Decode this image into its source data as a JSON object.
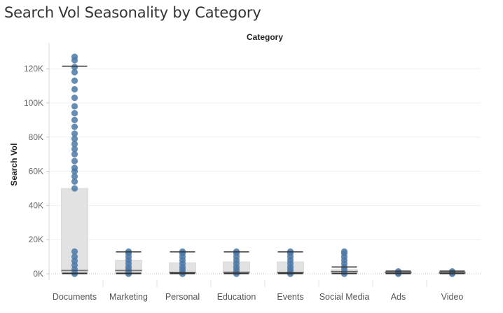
{
  "title": "Search Vol Seasonality by Category",
  "chart_data": {
    "type": "box",
    "column_header": "Category",
    "ylabel": "Search Vol",
    "ylim": [
      0,
      130000
    ],
    "yticks": [
      0,
      20000,
      40000,
      60000,
      80000,
      100000,
      120000
    ],
    "ytick_labels": [
      "0K",
      "20K",
      "40K",
      "60K",
      "80K",
      "100K",
      "120K"
    ],
    "grid": true,
    "point_color": "#4e79a7",
    "box_color": "#e0e0e0",
    "categories": [
      {
        "name": "Documents",
        "min": 0,
        "q1": 800,
        "median": 2000,
        "q3": 50000,
        "whisker_high": 121500,
        "points": [
          0,
          800,
          2500,
          5000,
          7500,
          10000,
          13000,
          50000,
          54000,
          57000,
          60000,
          62000,
          66000,
          70000,
          73000,
          76000,
          79000,
          82000,
          86000,
          90000,
          94000,
          98000,
          103000,
          108000,
          113000,
          118000,
          121000,
          125000,
          127000
        ]
      },
      {
        "name": "Marketing",
        "min": 0,
        "q1": 800,
        "median": 2000,
        "q3": 8000,
        "whisker_high": 12800,
        "points": [
          0,
          1000,
          2500,
          4000,
          6000,
          8000,
          10000,
          12000,
          13000
        ]
      },
      {
        "name": "Personal",
        "min": 0,
        "q1": 600,
        "median": 800,
        "q3": 6500,
        "whisker_high": 12800,
        "points": [
          0,
          1000,
          2500,
          4000,
          6000,
          8000,
          10000,
          12000,
          13000
        ]
      },
      {
        "name": "Education",
        "min": 0,
        "q1": 600,
        "median": 1000,
        "q3": 7000,
        "whisker_high": 12800,
        "points": [
          0,
          1000,
          2500,
          4000,
          6000,
          8000,
          10000,
          12000,
          13000
        ]
      },
      {
        "name": "Events",
        "min": 0,
        "q1": 600,
        "median": 800,
        "q3": 7000,
        "whisker_high": 12800,
        "points": [
          0,
          1000,
          2500,
          4000,
          6000,
          8000,
          10000,
          12000,
          13000
        ]
      },
      {
        "name": "Social Media",
        "min": 0,
        "q1": 500,
        "median": 1500,
        "q3": 2500,
        "whisker_high": 4000,
        "points": [
          0,
          1000,
          2500,
          4000,
          6000,
          8000,
          10000,
          12000,
          13000
        ]
      },
      {
        "name": "Ads",
        "min": 0,
        "q1": 300,
        "median": 700,
        "q3": 1300,
        "whisker_high": 1600,
        "points": [
          0,
          700,
          1400
        ]
      },
      {
        "name": "Video",
        "min": 0,
        "q1": 300,
        "median": 700,
        "q3": 1300,
        "whisker_high": 1600,
        "points": [
          0,
          700,
          1400
        ]
      }
    ]
  }
}
